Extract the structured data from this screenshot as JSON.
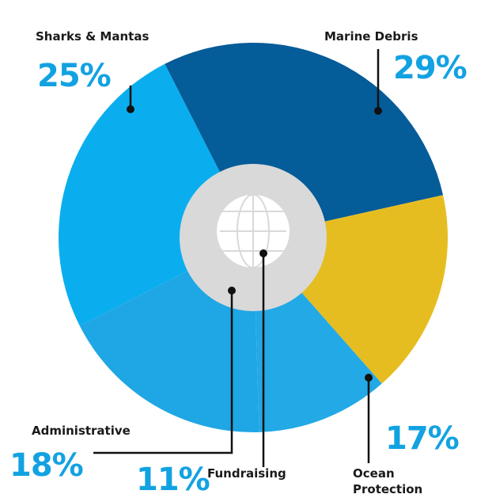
{
  "chart_data": {
    "type": "pie",
    "categories": [
      "Marine Debris",
      "Ocean Protection",
      "Fundraising",
      "Administrative",
      "Sharks & Mantas"
    ],
    "values": [
      29,
      17,
      11,
      18,
      25
    ],
    "value_labels": [
      "29%",
      "17%",
      "11%",
      "18%",
      "25%"
    ],
    "colors": [
      "#045c98",
      "#e6bd20",
      "#22a9e6",
      "#1fa6e4",
      "#0aaeee"
    ]
  }
}
